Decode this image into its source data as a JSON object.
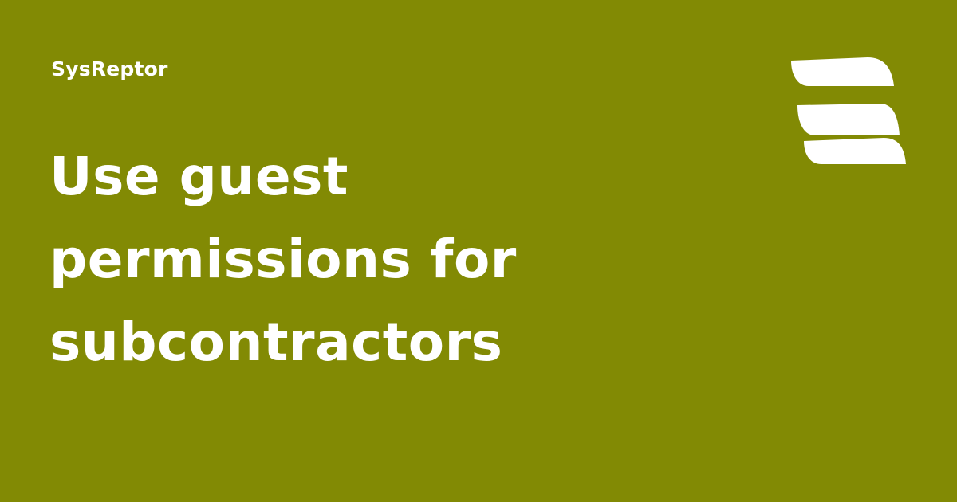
{
  "brand": {
    "name": "SysReptor",
    "logo_icon": "sysreptor-logo-icon"
  },
  "headline": {
    "lines": [
      "Use guest",
      "permissions for",
      "subcontractors"
    ]
  },
  "colors": {
    "background": "#828a04",
    "text": "#ffffff"
  }
}
